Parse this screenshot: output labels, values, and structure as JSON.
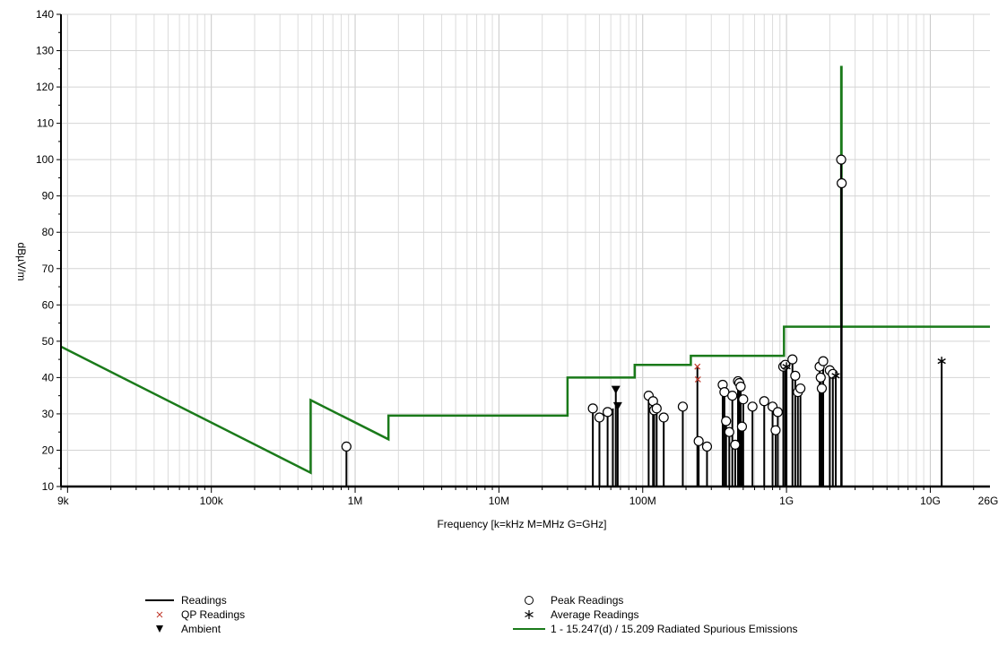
{
  "chart_data": {
    "type": "line",
    "ylabel": "dBµV/m",
    "xlabel": "Frequency [k=kHz M=MHz G=GHz]",
    "xscale": "log",
    "xlim": [
      9000,
      26000000000
    ],
    "ylim": [
      10,
      140
    ],
    "yticks": [
      10,
      20,
      30,
      40,
      50,
      60,
      70,
      80,
      90,
      100,
      110,
      120,
      130,
      140
    ],
    "xtick_labels": [
      {
        "value": 9000,
        "label": "9k"
      },
      {
        "value": 100000,
        "label": "100k"
      },
      {
        "value": 1000000,
        "label": "1M"
      },
      {
        "value": 10000000,
        "label": "10M"
      },
      {
        "value": 100000000,
        "label": "100M"
      },
      {
        "value": 1000000000,
        "label": "1G"
      },
      {
        "value": 10000000000,
        "label": "10G"
      },
      {
        "value": 26000000000,
        "label": "26G"
      }
    ],
    "grid": true,
    "legend_position": "bottom",
    "limit_line": {
      "name": "1 - 15.247(d) / 15.209 Radiated Spurious Emissions",
      "color": "#1a7a1a",
      "points": [
        [
          9000,
          48.5
        ],
        [
          490000,
          13.8
        ],
        [
          490000,
          33.8
        ],
        [
          1705000,
          23.0
        ],
        [
          1705000,
          29.5
        ],
        [
          30000000,
          29.5
        ],
        [
          30000000,
          40.0
        ],
        [
          88000000,
          40.0
        ],
        [
          88000000,
          43.5
        ],
        [
          216000000,
          43.5
        ],
        [
          216000000,
          46.0
        ],
        [
          960000000,
          46.0
        ],
        [
          960000000,
          54.0
        ],
        [
          2400000000,
          54.0
        ],
        [
          2400000000,
          125.5
        ],
        [
          2415000000,
          125.5
        ],
        [
          2415000000,
          54.0
        ],
        [
          26000000000,
          54.0
        ]
      ]
    },
    "readings": [
      [
        870000,
        21.0
      ],
      [
        45000000,
        31.5
      ],
      [
        50000000,
        29.0
      ],
      [
        57000000,
        30.5
      ],
      [
        62000000,
        31.5
      ],
      [
        65000000,
        36.5
      ],
      [
        67000000,
        32.0
      ],
      [
        110000000,
        35.0
      ],
      [
        118000000,
        33.5
      ],
      [
        120000000,
        31.0
      ],
      [
        125000000,
        31.5
      ],
      [
        140000000,
        29.0
      ],
      [
        190000000,
        32.0
      ],
      [
        240000000,
        43.0
      ],
      [
        245000000,
        22.5
      ],
      [
        280000000,
        21.0
      ],
      [
        360000000,
        38.0
      ],
      [
        370000000,
        36.0
      ],
      [
        380000000,
        28.0
      ],
      [
        400000000,
        25.0
      ],
      [
        420000000,
        35.0
      ],
      [
        440000000,
        21.5
      ],
      [
        460000000,
        39.0
      ],
      [
        470000000,
        38.5
      ],
      [
        480000000,
        37.5
      ],
      [
        490000000,
        26.5
      ],
      [
        500000000,
        34.0
      ],
      [
        580000000,
        32.0
      ],
      [
        700000000,
        33.5
      ],
      [
        800000000,
        32.0
      ],
      [
        840000000,
        25.5
      ],
      [
        870000000,
        30.5
      ],
      [
        950000000,
        43.0
      ],
      [
        980000000,
        43.5
      ],
      [
        1000000000,
        43.0
      ],
      [
        1100000000,
        45.0
      ],
      [
        1150000000,
        40.5
      ],
      [
        1200000000,
        36.0
      ],
      [
        1250000000,
        37.0
      ],
      [
        1700000000,
        43.0
      ],
      [
        1730000000,
        40.0
      ],
      [
        1760000000,
        37.0
      ],
      [
        1800000000,
        44.5
      ],
      [
        2000000000,
        42.0
      ],
      [
        2100000000,
        41.0
      ],
      [
        2200000000,
        40.5
      ],
      [
        2400000000,
        100.0
      ],
      [
        2420000000,
        93.5
      ],
      [
        12000000000,
        44.5
      ]
    ],
    "peak_readings": [
      [
        870000,
        21.0
      ],
      [
        45000000,
        31.5
      ],
      [
        50000000,
        29.0
      ],
      [
        57000000,
        30.5
      ],
      [
        110000000,
        35.0
      ],
      [
        118000000,
        33.5
      ],
      [
        120000000,
        31.0
      ],
      [
        125000000,
        31.5
      ],
      [
        140000000,
        29.0
      ],
      [
        190000000,
        32.0
      ],
      [
        245000000,
        22.5
      ],
      [
        280000000,
        21.0
      ],
      [
        360000000,
        38.0
      ],
      [
        370000000,
        36.0
      ],
      [
        380000000,
        28.0
      ],
      [
        400000000,
        25.0
      ],
      [
        420000000,
        35.0
      ],
      [
        440000000,
        21.5
      ],
      [
        460000000,
        39.0
      ],
      [
        470000000,
        38.5
      ],
      [
        480000000,
        37.5
      ],
      [
        490000000,
        26.5
      ],
      [
        500000000,
        34.0
      ],
      [
        580000000,
        32.0
      ],
      [
        700000000,
        33.5
      ],
      [
        800000000,
        32.0
      ],
      [
        840000000,
        25.5
      ],
      [
        870000000,
        30.5
      ],
      [
        950000000,
        43.0
      ],
      [
        980000000,
        43.5
      ],
      [
        1100000000,
        45.0
      ],
      [
        1150000000,
        40.5
      ],
      [
        1200000000,
        36.0
      ],
      [
        1250000000,
        37.0
      ],
      [
        1700000000,
        43.0
      ],
      [
        1730000000,
        40.0
      ],
      [
        1760000000,
        37.0
      ],
      [
        1800000000,
        44.5
      ],
      [
        2000000000,
        42.0
      ],
      [
        2100000000,
        41.0
      ],
      [
        2400000000,
        100.0
      ],
      [
        2420000000,
        93.5
      ]
    ],
    "qp_readings": [
      [
        240000000,
        43.0
      ],
      [
        242000000,
        39.5
      ]
    ],
    "average_readings": [
      [
        1000000000,
        43.0
      ],
      [
        2200000000,
        40.5
      ],
      [
        12000000000,
        44.5
      ]
    ],
    "ambient": [
      [
        65000000,
        36.5
      ],
      [
        67000000,
        32.0
      ]
    ],
    "legend": {
      "readings": "Readings",
      "qp": "QP Readings",
      "ambient": "Ambient",
      "peak": "Peak Readings",
      "average": "Average Readings",
      "limit": "1 - 15.247(d) / 15.209 Radiated Spurious Emissions"
    }
  }
}
